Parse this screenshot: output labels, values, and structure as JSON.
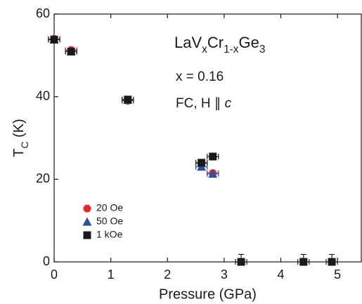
{
  "chart_data": {
    "type": "scatter",
    "x_label": "Pressure (GPa)",
    "y_label": [
      {
        "text": "T"
      },
      {
        "text": "C",
        "sub": true
      },
      {
        "text": " (K)"
      }
    ],
    "annotations": [
      [
        {
          "text": "LaV"
        },
        {
          "text": "x",
          "sub": true
        },
        {
          "text": "Cr"
        },
        {
          "text": "1-x",
          "sub": true
        },
        {
          "text": "Ge"
        },
        {
          "text": "3",
          "sub": true
        }
      ],
      [
        {
          "text": "x = 0.16"
        }
      ],
      [
        {
          "text": "FC, H ∥ "
        },
        {
          "text": "c",
          "italic": true
        }
      ]
    ],
    "xlim": [
      0,
      5.42
    ],
    "xticks": [
      0,
      1,
      2,
      3,
      4,
      5
    ],
    "ylim": [
      0,
      60
    ],
    "yticks": [
      0,
      20,
      40,
      60
    ],
    "series": [
      {
        "name": "20 Oe",
        "color": "#e8262b",
        "marker": "circle",
        "x": [
          0,
          0.3,
          1.3,
          2.6,
          2.8
        ],
        "values": [
          54,
          51.3,
          39,
          23.9,
          21.5
        ],
        "xerr": [
          0.1,
          0.1,
          0.1,
          0.1,
          0.1
        ]
      },
      {
        "name": "50 Oe",
        "color": "#2e4fa0",
        "marker": "triangle",
        "x": [
          0,
          0.3,
          1.3,
          2.6,
          2.8
        ],
        "values": [
          53.8,
          51,
          39.2,
          23,
          21.3
        ],
        "xerr": [
          0.1,
          0.1,
          0.1,
          0.1,
          0.1
        ]
      },
      {
        "name": "1 kOe",
        "color": "#1a1a1a",
        "marker": "square",
        "x": [
          0,
          0.3,
          1.3,
          2.6,
          2.8,
          3.3,
          4.4,
          4.9
        ],
        "values": [
          53.8,
          50.9,
          39.3,
          24,
          25.5,
          0,
          0,
          0
        ],
        "xerr": [
          0.1,
          0.1,
          0.1,
          0.1,
          0.1,
          0.1,
          0.1,
          0.1
        ],
        "yerr": [
          null,
          null,
          null,
          null,
          null,
          1.8,
          1.8,
          1.8
        ]
      }
    ]
  }
}
